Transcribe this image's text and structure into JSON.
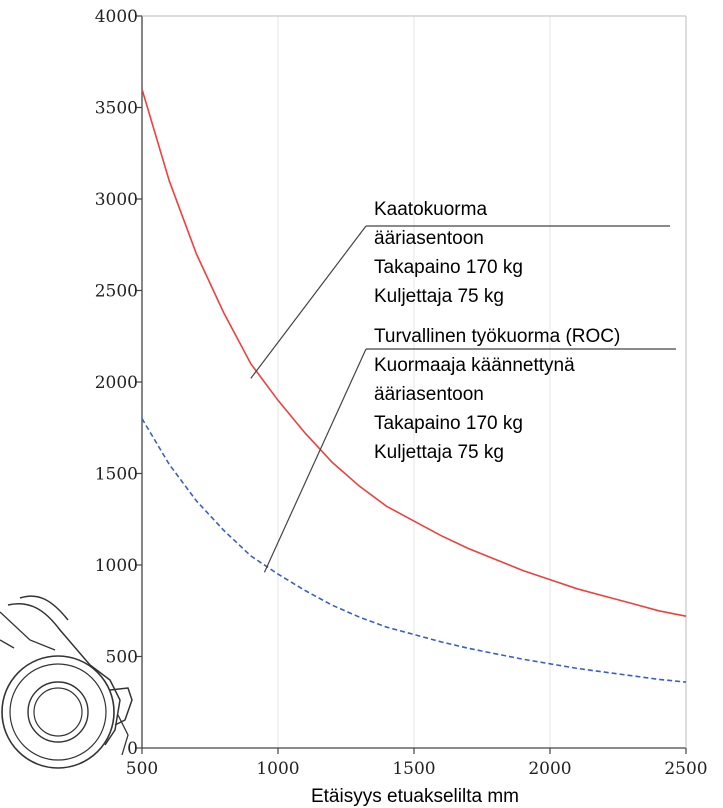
{
  "chart_data": {
    "type": "line",
    "xlabel": "Etäisyys etuakselilta mm",
    "ylabel": "",
    "xlim": [
      500,
      2500
    ],
    "ylim": [
      0,
      4000
    ],
    "x_ticks": [
      "500",
      "1000",
      "1500",
      "2000",
      "2500"
    ],
    "y_ticks": [
      "0",
      "500",
      "1000",
      "1500",
      "2000",
      "2500",
      "3000",
      "3500",
      "4000"
    ],
    "grid": "vertical",
    "series": [
      {
        "color": "#e8433f",
        "style": "solid",
        "x": [
          500,
          600,
          700,
          800,
          900,
          1000,
          1100,
          1200,
          1300,
          1400,
          1500,
          1600,
          1700,
          1800,
          1900,
          2000,
          2100,
          2200,
          2300,
          2400,
          2500
        ],
        "y": [
          3600,
          3100,
          2700,
          2380,
          2100,
          1900,
          1720,
          1560,
          1430,
          1320,
          1240,
          1160,
          1090,
          1030,
          970,
          920,
          870,
          830,
          790,
          750,
          720
        ]
      },
      {
        "color": "#3a5fbf",
        "style": "dashed",
        "x": [
          500,
          600,
          700,
          800,
          900,
          1000,
          1100,
          1200,
          1300,
          1400,
          1500,
          1600,
          1700,
          1800,
          1900,
          2000,
          2100,
          2200,
          2300,
          2400,
          2500
        ],
        "y": [
          1800,
          1550,
          1350,
          1190,
          1050,
          950,
          860,
          780,
          715,
          660,
          620,
          580,
          545,
          515,
          485,
          460,
          435,
          415,
          395,
          375,
          360
        ]
      }
    ],
    "annotations": [
      {
        "lines": [
          "Kaatokuorma",
          "ääriasentoon",
          "Takapaino 170 kg",
          "Kuljettaja 75 kg"
        ],
        "point_x": 900,
        "point_y": 2020
      },
      {
        "lines": [
          "Turvallinen työkuorma (ROC)",
          "Kuormaaja käännettynä",
          "ääriasentoon",
          "Takapaino 170 kg",
          "Kuljettaja 75 kg"
        ],
        "point_x": 950,
        "point_y": 960
      }
    ]
  },
  "illustration": {
    "icon": "loader-wheel-icon"
  }
}
